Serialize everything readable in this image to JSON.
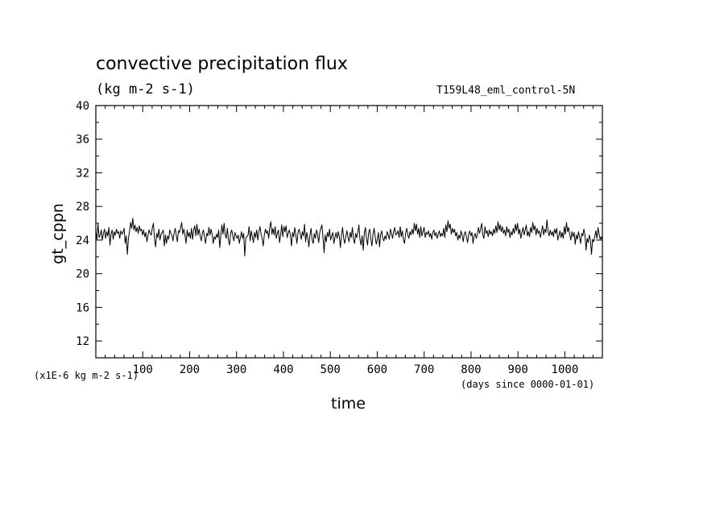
{
  "chart_data": {
    "type": "line",
    "title": "convective precipitation flux",
    "subtitle": "(kg m-2 s-1)",
    "annotation": "T159L48_eml_control-5N",
    "xlabel": "time",
    "xunits": "(days since 0000-01-01)",
    "ylabel": "gt_cppn",
    "yunits": "(x1E-6 kg m-2 s-1)",
    "xlim": [
      0,
      1080
    ],
    "ylim": [
      10,
      40
    ],
    "xticks": [
      100,
      200,
      300,
      400,
      500,
      600,
      700,
      800,
      900,
      1000
    ],
    "yticks": [
      12,
      16,
      20,
      24,
      28,
      32,
      36,
      40
    ],
    "grid": false,
    "series": [
      {
        "values": [
          25.0,
          24.1,
          25.9,
          24.3,
          24.6,
          25.2,
          24.0,
          24.8,
          25.3,
          24.2,
          25.0,
          24.5,
          25.5,
          23.4,
          24.7,
          25.2,
          24.1,
          25.0,
          24.6,
          25.3,
          24.8,
          25.0,
          24.2,
          25.1,
          24.7,
          24.9,
          25.4,
          23.6,
          24.5,
          22.3,
          24.2,
          25.0,
          26.1,
          25.4,
          26.6,
          25.2,
          25.8,
          25.0,
          25.5,
          24.8,
          25.7,
          25.1,
          25.3,
          24.6,
          25.2,
          24.4,
          24.9,
          23.8,
          24.6,
          25.2,
          24.8,
          24.6,
          25.5,
          26.0,
          24.1,
          23.2,
          24.8,
          24.3,
          25.3,
          24.0,
          24.7,
          24.9,
          25.2,
          23.3,
          24.6,
          23.6,
          24.5,
          24.1,
          25.2,
          24.8,
          24.6,
          23.9,
          24.8,
          25.4,
          24.6,
          23.8,
          25.1,
          24.9,
          25.5,
          26.1,
          24.7,
          25.3,
          24.6,
          23.6,
          25.2,
          24.4,
          24.9,
          24.2,
          25.4,
          24.1,
          25.2,
          25.7,
          24.5,
          25.9,
          24.6,
          25.3,
          24.5,
          23.9,
          24.8,
          25.2,
          24.3,
          23.6,
          24.8,
          24.5,
          25.5,
          24.6,
          25.3,
          24.7,
          23.6,
          24.4,
          24.1,
          24.7,
          24.3,
          25.2,
          23.1,
          24.6,
          25.8,
          24.7,
          26.0,
          24.6,
          24.2,
          25.4,
          24.0,
          23.4,
          24.8,
          25.2,
          24.5,
          23.9,
          24.9,
          24.5,
          24.2,
          24.6,
          23.6,
          24.3,
          25.0,
          24.2,
          24.8,
          22.1,
          24.3,
          24.4,
          24.6,
          25.6,
          23.9,
          25.1,
          24.4,
          23.7,
          24.9,
          24.3,
          25.2,
          24.0,
          25.0,
          25.6,
          24.7,
          24.2,
          23.3,
          24.6,
          25.3,
          24.8,
          25.1,
          24.2,
          25.5,
          26.2,
          24.7,
          25.4,
          24.6,
          25.6,
          24.2,
          24.8,
          25.2,
          23.7,
          24.6,
          25.8,
          24.4,
          25.6,
          25.0,
          25.7,
          24.3,
          24.8,
          25.2,
          24.6,
          23.3,
          24.9,
          24.4,
          25.5,
          24.6,
          23.6,
          24.9,
          25.3,
          24.8,
          24.1,
          25.0,
          24.5,
          25.9,
          23.8,
          24.9,
          24.3,
          23.2,
          24.6,
          25.4,
          24.0,
          23.6,
          24.8,
          24.2,
          25.2,
          24.7,
          23.7,
          24.9,
          25.4,
          25.8,
          24.3,
          22.5,
          24.6,
          23.8,
          24.9,
          24.4,
          25.3,
          24.0,
          24.5,
          24.9,
          23.6,
          24.3,
          24.9,
          24.2,
          25.0,
          24.4,
          23.1,
          24.6,
          25.5,
          24.2,
          23.6,
          24.5,
          25.1,
          24.3,
          23.8,
          24.9,
          24.3,
          25.5,
          24.2,
          23.6,
          24.8,
          24.3,
          24.9,
          25.8,
          24.1,
          23.4,
          24.5,
          22.8,
          24.8,
          25.5,
          24.2,
          23.4,
          24.9,
          25.3,
          24.1,
          23.3,
          24.7,
          25.4,
          24.4,
          23.5,
          24.1,
          24.9,
          23.2,
          24.6,
          25.1,
          24.2,
          23.9,
          24.5,
          24.1,
          25.0,
          24.6,
          24.1,
          25.3,
          24.8,
          24.2,
          25.0,
          25.5,
          24.6,
          24.8,
          25.1,
          24.3,
          25.6,
          24.4,
          25.1,
          24.0,
          23.6,
          24.8,
          25.4,
          24.6,
          24.2,
          25.0,
          24.6,
          25.3,
          24.7,
          26.0,
          25.1,
          25.9,
          24.7,
          25.4,
          24.3,
          25.6,
          24.5,
          25.0,
          25.5,
          24.3,
          24.9,
          24.7,
          25.1,
          24.4,
          24.8,
          24.1,
          24.9,
          25.2,
          24.5,
          24.9,
          24.2,
          24.7,
          25.1,
          24.4,
          24.8,
          24.5,
          25.4,
          24.3,
          25.8,
          25.0,
          26.3,
          25.4,
          25.9,
          24.7,
          25.4,
          24.9,
          25.3,
          24.5,
          24.9,
          24.0,
          24.6,
          24.2,
          25.1,
          24.6,
          23.8,
          24.8,
          25.0,
          24.3,
          23.7,
          24.7,
          25.1,
          24.5,
          24.9,
          23.6,
          24.5,
          24.8,
          24.2,
          24.7,
          25.5,
          24.8,
          25.3,
          26.0,
          24.6,
          24.2,
          25.6,
          24.8,
          25.1,
          24.4,
          25.2,
          24.7,
          25.0,
          24.5,
          25.3,
          24.8,
          25.7,
          24.9,
          26.2,
          25.2,
          25.8,
          25.0,
          25.6,
          24.8,
          25.2,
          24.5,
          25.6,
          24.9,
          25.3,
          24.3,
          25.0,
          24.6,
          25.4,
          24.8,
          25.9,
          25.1,
          26.0,
          24.7,
          25.3,
          24.2,
          24.9,
          25.5,
          24.6,
          25.2,
          25.8,
          24.5,
          25.0,
          24.4,
          25.5,
          24.9,
          26.1,
          25.2,
          25.7,
          24.6,
          25.4,
          24.8,
          25.1,
          24.3,
          25.0,
          25.7,
          24.6,
          25.3,
          24.9,
          26.4,
          25.0,
          24.5,
          25.2,
          24.6,
          25.0,
          24.4,
          25.3,
          24.8,
          25.4,
          24.0,
          24.5,
          25.1,
          24.3,
          24.9,
          24.2,
          25.6,
          24.7,
          26.1,
          25.0,
          25.5,
          24.6,
          24.0,
          25.0,
          24.4,
          24.9,
          23.5,
          24.6,
          24.1,
          25.0,
          24.4,
          23.6,
          24.8,
          24.5,
          25.3,
          24.6,
          22.8,
          24.2,
          23.7,
          24.6,
          24.0,
          22.3,
          24.1,
          23.8,
          24.4,
          25.1,
          24.2,
          25.5,
          24.7,
          24.1,
          24.4,
          23.9
        ]
      }
    ]
  }
}
